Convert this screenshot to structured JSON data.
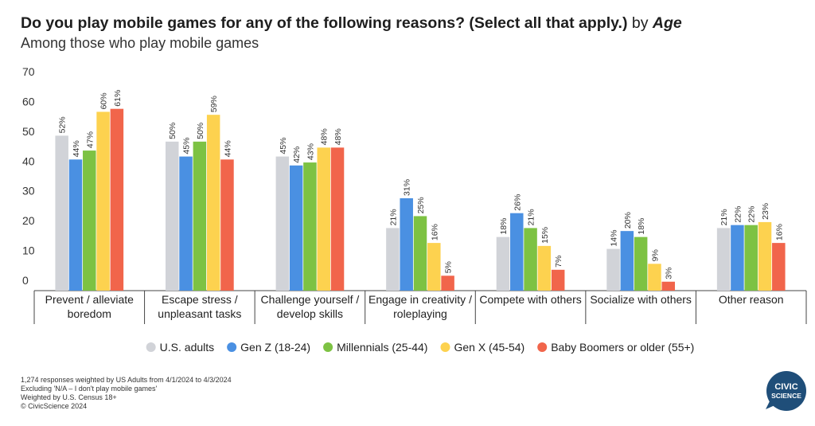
{
  "chart_data": {
    "type": "bar",
    "title": "Do you play mobile games for any of the following reasons? (Select all that apply.)",
    "title_by": "by",
    "title_group": "Age",
    "subtitle": "Among those who play mobile games",
    "categories": [
      "Prevent / alleviate boredom",
      "Escape stress / unpleasant tasks",
      "Challenge yourself / develop skills",
      "Engage in creativity / roleplaying",
      "Compete with others",
      "Socialize with others",
      "Other reason"
    ],
    "series": [
      {
        "name": "U.S. adults",
        "color": "#d1d3d8",
        "values": [
          52,
          50,
          45,
          21,
          18,
          14,
          21
        ],
        "value_labels": [
          "52%",
          "50%",
          "45%",
          "21%",
          "18%",
          "14%",
          "21%"
        ]
      },
      {
        "name": "Gen Z (18-24)",
        "color": "#4a90e2",
        "values": [
          44,
          45,
          42,
          31,
          26,
          20,
          22
        ],
        "value_labels": [
          "44%",
          "45%",
          "42%",
          "31%",
          "26%",
          "20%",
          "22%"
        ]
      },
      {
        "name": "Millennials (25-44)",
        "color": "#7dc243",
        "values": [
          47,
          50,
          43,
          25,
          21,
          18,
          22
        ],
        "value_labels": [
          "47%",
          "50%",
          "43%",
          "25%",
          "21%",
          "18%",
          "22%"
        ]
      },
      {
        "name": "Gen X (45-54)",
        "color": "#fdd24f",
        "values": [
          60,
          59,
          48,
          16,
          15,
          9,
          23
        ],
        "value_labels": [
          "60%",
          "59%",
          "48%",
          "16%",
          "15%",
          "9%",
          "23%"
        ]
      },
      {
        "name": "Baby Boomers or older (55+)",
        "color": "#f1654b",
        "values": [
          61,
          44,
          48,
          5,
          7,
          3,
          16
        ],
        "value_labels": [
          "61%",
          "44%",
          "48%",
          "5%",
          "7%",
          "3%",
          "16%"
        ]
      }
    ],
    "ylim": [
      0,
      70
    ],
    "yticks": [
      0,
      10,
      20,
      30,
      40,
      50,
      60,
      70
    ],
    "grid": false,
    "legend": "bottom",
    "notes": [
      "1,274 responses weighted by US Adults from 4/1/2024 to 4/3/2024",
      "Excluding 'N/A – I don't play mobile games'",
      "Weighted by U.S. Census 18+",
      "© CivicScience 2024"
    ],
    "logo": [
      "CIVIC",
      "SCIENCE"
    ]
  }
}
